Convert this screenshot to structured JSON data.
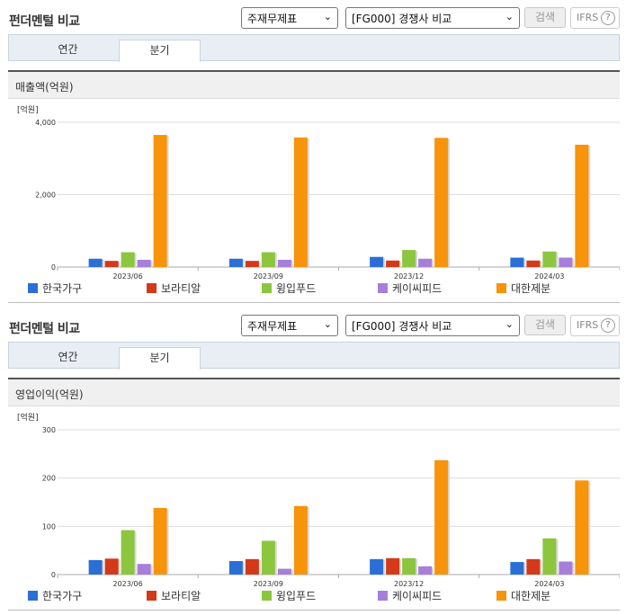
{
  "panels": [
    {
      "title": "펀더멘털 비교",
      "select1": "주재무제표",
      "select2": "[FG000] 경쟁사 비교",
      "search_button": "검색",
      "ifrs_label": "IFRS",
      "help_icon_glyph": "?",
      "tabs": [
        "연간",
        "분기"
      ],
      "active_tab": "분기",
      "chart_title": "매출액(억원)"
    },
    {
      "title": "펀더멘털 비교",
      "select1": "주재무제표",
      "select2": "[FG000] 경쟁사 비교",
      "search_button": "검색",
      "ifrs_label": "IFRS",
      "help_icon_glyph": "?",
      "tabs": [
        "연간",
        "분기"
      ],
      "active_tab": "분기",
      "chart_title": "영업이익(억원)"
    }
  ],
  "chevron_glyph": "⌄",
  "colors": {
    "한국가구": "#2b6fd6",
    "보라티알": "#d23a1a",
    "윙입푸드": "#8cc63f",
    "케이씨피드": "#a77ed9",
    "대한제분": "#f7940a"
  },
  "chart_data": [
    {
      "type": "bar",
      "title": "매출액(억원)",
      "unit_label": "[억원]",
      "categories": [
        "2023/06",
        "2023/09",
        "2023/12",
        "2024/03"
      ],
      "ylim": [
        0,
        4000
      ],
      "yticks": [
        0,
        2000,
        4000
      ],
      "ytick_labels": [
        "0",
        "2,000",
        "4,000"
      ],
      "grid": true,
      "legend_position": "bottom",
      "series": [
        {
          "name": "한국가구",
          "values": [
            230,
            230,
            280,
            260
          ]
        },
        {
          "name": "보라티알",
          "values": [
            170,
            170,
            180,
            180
          ]
        },
        {
          "name": "윙입푸드",
          "values": [
            410,
            410,
            470,
            430
          ]
        },
        {
          "name": "케이씨피드",
          "values": [
            200,
            200,
            230,
            260
          ]
        },
        {
          "name": "대한제분",
          "values": [
            3650,
            3580,
            3570,
            3380
          ]
        }
      ]
    },
    {
      "type": "bar",
      "title": "영업이익(억원)",
      "unit_label": "[억원]",
      "categories": [
        "2023/06",
        "2023/09",
        "2023/12",
        "2024/03"
      ],
      "ylim": [
        0,
        300
      ],
      "yticks": [
        0,
        100,
        200,
        300
      ],
      "ytick_labels": [
        "0",
        "100",
        "200",
        "300"
      ],
      "grid": true,
      "legend_position": "bottom",
      "series": [
        {
          "name": "한국가구",
          "values": [
            30,
            28,
            32,
            26
          ]
        },
        {
          "name": "보라티알",
          "values": [
            33,
            32,
            34,
            32
          ]
        },
        {
          "name": "윙입푸드",
          "values": [
            92,
            70,
            34,
            75
          ]
        },
        {
          "name": "케이씨피드",
          "values": [
            22,
            12,
            17,
            27
          ]
        },
        {
          "name": "대한제분",
          "values": [
            138,
            142,
            237,
            195
          ]
        }
      ]
    }
  ]
}
